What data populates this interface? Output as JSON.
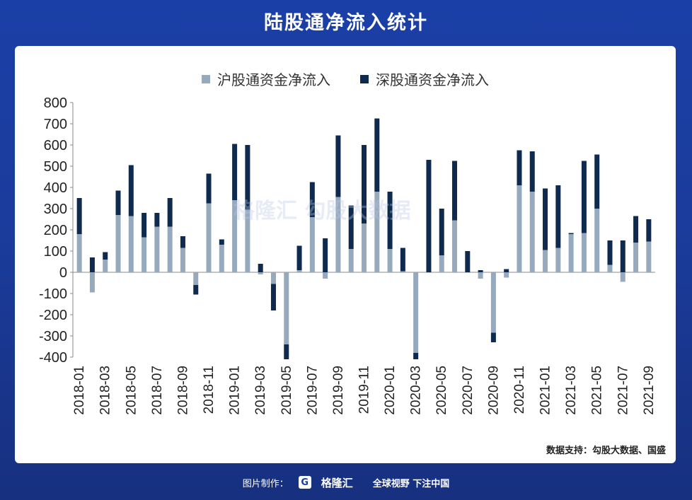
{
  "banner_title": "陆股通净流入统计",
  "source_text": "数据支持：勾股大数据、国盛",
  "footer": {
    "made_by_label": "图片制作：",
    "logo_mark": "G",
    "logo_name": "格隆汇",
    "slogan": "全球视野 下注中国"
  },
  "watermark_text": "格隆汇 勾股大数据",
  "colors": {
    "sh": "#97a9bd",
    "sz": "#0e2a4e",
    "banner_bg": "#1b3c9c"
  },
  "chart_data": {
    "type": "bar",
    "stacked": true,
    "ylim": [
      -400,
      800
    ],
    "yticks": [
      800,
      700,
      600,
      500,
      400,
      300,
      200,
      100,
      0,
      -100,
      -200,
      -300,
      -400
    ],
    "legend_position": "top",
    "grid": false,
    "categories": [
      "2018-01",
      "2018-02",
      "2018-03",
      "2018-04",
      "2018-05",
      "2018-06",
      "2018-07",
      "2018-08",
      "2018-09",
      "2018-10",
      "2018-11",
      "2018-12",
      "2019-01",
      "2019-02",
      "2019-03",
      "2019-04",
      "2019-05",
      "2019-06",
      "2019-07",
      "2019-08",
      "2019-09",
      "2019-10",
      "2019-11",
      "2019-12",
      "2020-01",
      "2020-02",
      "2020-03",
      "2020-04",
      "2020-05",
      "2020-06",
      "2020-07",
      "2020-08",
      "2020-09",
      "2020-10",
      "2020-11",
      "2020-12",
      "2021-01",
      "2021-02",
      "2021-03",
      "2021-04",
      "2021-05",
      "2021-06",
      "2021-07",
      "2021-08",
      "2021-09"
    ],
    "xtick_labels": [
      "2018-01",
      "2018-03",
      "2018-05",
      "2018-07",
      "2018-09",
      "2018-11",
      "2019-01",
      "2019-03",
      "2019-05",
      "2019-07",
      "2019-09",
      "2019-11",
      "2020-01",
      "2020-03",
      "2020-05",
      "2020-07",
      "2020-09",
      "2020-11",
      "2021-01",
      "2021-03",
      "2021-05",
      "2021-07",
      "2021-09"
    ],
    "series": [
      {
        "name": "沪股通资金净流入",
        "values": [
          180,
          -95,
          60,
          270,
          265,
          165,
          215,
          215,
          115,
          -60,
          325,
          130,
          340,
          295,
          -10,
          -55,
          -340,
          10,
          260,
          -30,
          355,
          110,
          230,
          380,
          110,
          5,
          -380,
          0,
          80,
          245,
          0,
          -30,
          -285,
          -25,
          410,
          380,
          105,
          115,
          180,
          185,
          300,
          35,
          -45,
          140,
          145
        ]
      },
      {
        "name": "深股通资金净流入",
        "values": [
          170,
          70,
          35,
          115,
          240,
          115,
          65,
          135,
          55,
          -45,
          140,
          25,
          265,
          305,
          40,
          -125,
          -70,
          115,
          165,
          160,
          290,
          205,
          370,
          345,
          270,
          110,
          -30,
          530,
          220,
          280,
          100,
          10,
          -45,
          15,
          165,
          190,
          290,
          295,
          5,
          340,
          255,
          115,
          150,
          125,
          105
        ]
      }
    ]
  }
}
